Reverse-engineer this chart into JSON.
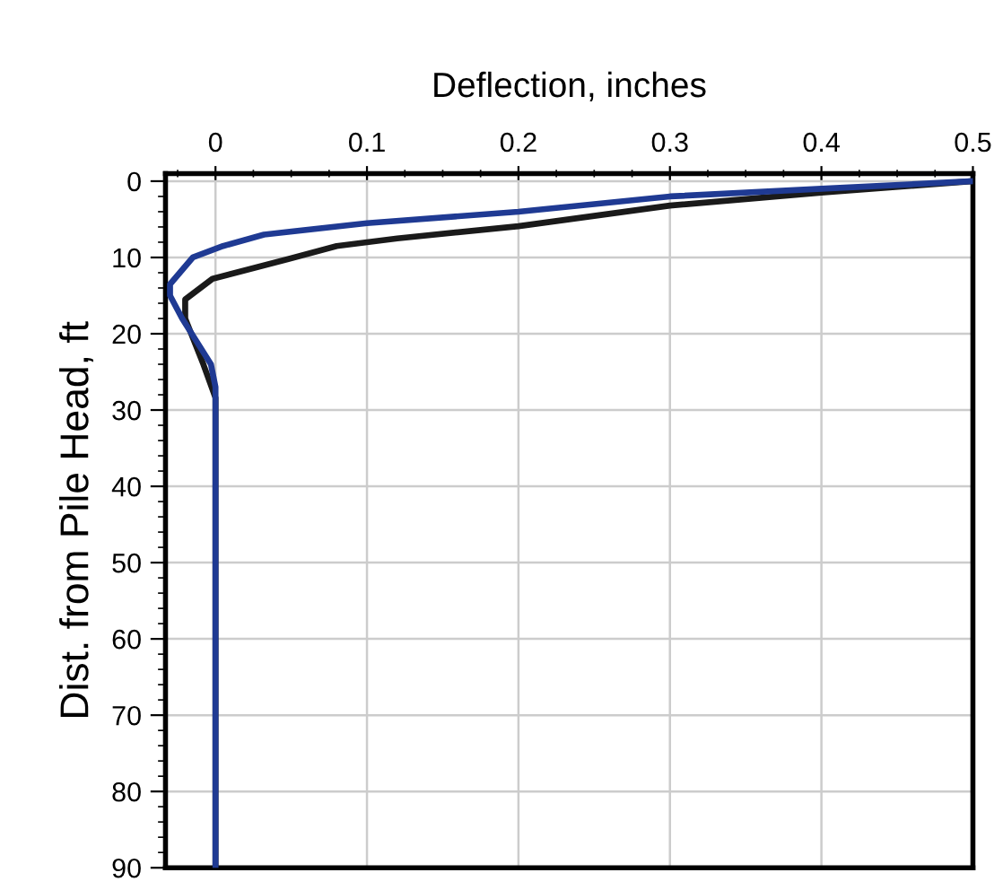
{
  "chart_data": {
    "type": "line",
    "xlabel": "Deflection, inches",
    "ylabel": "Dist. from Pile Head, ft",
    "xlim": [
      -0.033,
      0.5
    ],
    "xticks": [
      0,
      0.1,
      0.2,
      0.3,
      0.4,
      0.5
    ],
    "ylim": [
      90,
      -1
    ],
    "yticks": [
      0,
      10,
      20,
      30,
      40,
      50,
      60,
      70,
      80,
      90
    ],
    "grid": true,
    "marker": "none",
    "line_style": "solid",
    "series": [
      {
        "color": "#1a1a1a",
        "x": [
          0.5,
          0.4,
          0.3,
          0.2,
          0.12,
          0.08,
          0.048,
          -0.002,
          -0.02,
          -0.02,
          -0.008,
          0,
          0
        ],
        "values": [
          0,
          1.5,
          3.2,
          5.9,
          7.5,
          8.5,
          10.2,
          12.8,
          15.5,
          18,
          24,
          28.4,
          90
        ]
      },
      {
        "color": "#1f3a93",
        "x": [
          0.5,
          0.4,
          0.3,
          0.2,
          0.1,
          0.032,
          0.005,
          -0.015,
          -0.03,
          -0.03,
          -0.022,
          -0.003,
          0,
          0
        ],
        "values": [
          0,
          1,
          2,
          4,
          5.5,
          7,
          8.5,
          10,
          13.5,
          15,
          18,
          24,
          27,
          90
        ]
      }
    ]
  }
}
